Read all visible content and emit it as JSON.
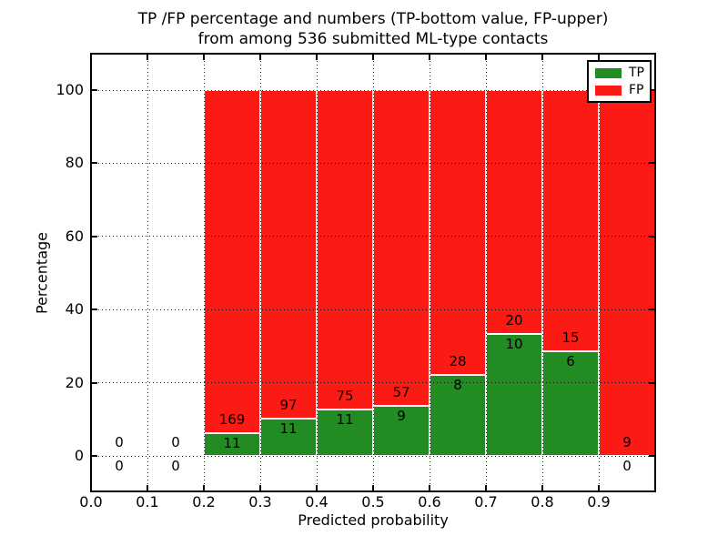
{
  "figure": {
    "title_line1": "TP /FP percentage and numbers (TP-bottom value, FP-upper)",
    "title_line2": "from among 536 submitted ML-type contacts",
    "xlabel": "Predicted probability",
    "ylabel": "Percentage"
  },
  "legend": {
    "items": [
      {
        "label": "TP",
        "color": "#228b22"
      },
      {
        "label": "FP",
        "color": "#fc1a15"
      }
    ]
  },
  "chart_data": {
    "type": "bar",
    "stacked": true,
    "normalized": "each bin scaled to 100%",
    "title": "TP /FP percentage and numbers (TP-bottom value, FP-upper) from among 536 submitted ML-type contacts",
    "xlabel": "Predicted probability",
    "ylabel": "Percentage",
    "total_contacts": 536,
    "xlim": [
      0.0,
      1.0
    ],
    "ylim": [
      -9.7,
      110
    ],
    "grid": "dotted, on top of bars",
    "legend_position": "upper right",
    "x_tick_labels": [
      "0.0",
      "0.1",
      "0.2",
      "0.3",
      "0.4",
      "0.5",
      "0.6",
      "0.7",
      "0.8",
      "0.9"
    ],
    "x_tick_values": [
      0.0,
      0.1,
      0.2,
      0.3,
      0.4,
      0.5,
      0.6,
      0.7,
      0.8,
      0.9
    ],
    "y_tick_labels": [
      "0",
      "20",
      "40",
      "60",
      "80",
      "100"
    ],
    "y_tick_values": [
      0,
      20,
      40,
      60,
      80,
      100
    ],
    "series": [
      {
        "name": "TP",
        "color": "#228b22",
        "values": [
          0,
          0,
          11,
          11,
          11,
          9,
          8,
          10,
          6,
          0
        ]
      },
      {
        "name": "FP",
        "color": "#fc1a15",
        "values": [
          0,
          0,
          169,
          97,
          75,
          57,
          28,
          20,
          15,
          9
        ]
      }
    ],
    "bins": [
      {
        "x_start": 0.0,
        "x_end": 0.1,
        "tp": 0,
        "fp": 0
      },
      {
        "x_start": 0.1,
        "x_end": 0.2,
        "tp": 0,
        "fp": 0
      },
      {
        "x_start": 0.2,
        "x_end": 0.3,
        "tp": 11,
        "fp": 169
      },
      {
        "x_start": 0.3,
        "x_end": 0.4,
        "tp": 11,
        "fp": 97
      },
      {
        "x_start": 0.4,
        "x_end": 0.5,
        "tp": 11,
        "fp": 75
      },
      {
        "x_start": 0.5,
        "x_end": 0.6,
        "tp": 9,
        "fp": 57
      },
      {
        "x_start": 0.6,
        "x_end": 0.7,
        "tp": 8,
        "fp": 28
      },
      {
        "x_start": 0.7,
        "x_end": 0.8,
        "tp": 10,
        "fp": 20
      },
      {
        "x_start": 0.8,
        "x_end": 0.9,
        "tp": 6,
        "fp": 15
      },
      {
        "x_start": 0.9,
        "x_end": 1.0,
        "tp": 0,
        "fp": 9
      }
    ]
  }
}
